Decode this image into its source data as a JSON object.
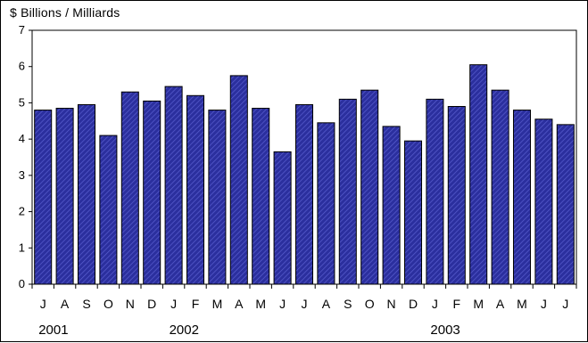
{
  "chart_data": {
    "type": "bar",
    "ylabel": "$ Billions / Milliards",
    "ylim": [
      0,
      7
    ],
    "yticks": [
      0,
      1,
      2,
      3,
      4,
      5,
      6,
      7
    ],
    "grid": false,
    "categories": [
      "J",
      "A",
      "S",
      "O",
      "N",
      "D",
      "J",
      "F",
      "M",
      "A",
      "M",
      "J",
      "J",
      "A",
      "S",
      "O",
      "N",
      "D",
      "J",
      "F",
      "M",
      "A",
      "M",
      "J",
      "J"
    ],
    "values": [
      4.8,
      4.85,
      4.95,
      4.1,
      5.3,
      5.05,
      5.45,
      5.2,
      4.8,
      5.75,
      4.85,
      3.65,
      4.95,
      4.45,
      5.1,
      5.35,
      4.35,
      3.95,
      5.1,
      4.9,
      6.05,
      5.35,
      4.8,
      4.55,
      4.4
    ],
    "years": [
      {
        "label": "2001",
        "index": 0
      },
      {
        "label": "2002",
        "index": 6
      },
      {
        "label": "2003",
        "index": 18
      }
    ],
    "colors": {
      "bar_fill": "#2b2f9e",
      "bar_stroke": "#000000",
      "bar_hatch": "#5a5fd0"
    }
  }
}
